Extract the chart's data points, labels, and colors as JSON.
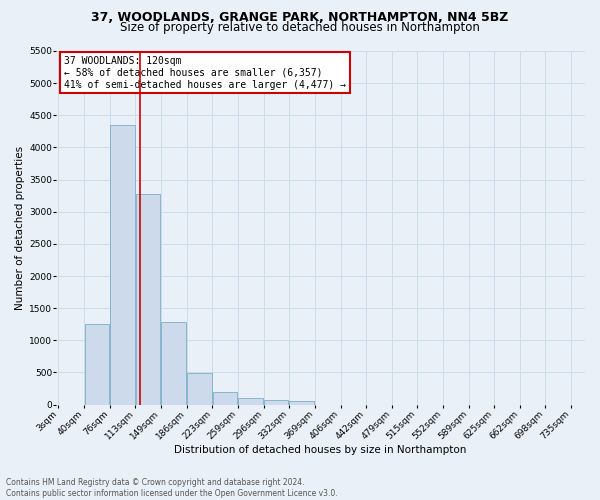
{
  "title": "37, WOODLANDS, GRANGE PARK, NORTHAMPTON, NN4 5BZ",
  "subtitle": "Size of property relative to detached houses in Northampton",
  "xlabel": "Distribution of detached houses by size in Northampton",
  "ylabel": "Number of detached properties",
  "bin_labels": [
    "3sqm",
    "40sqm",
    "76sqm",
    "113sqm",
    "149sqm",
    "186sqm",
    "223sqm",
    "259sqm",
    "296sqm",
    "332sqm",
    "369sqm",
    "406sqm",
    "442sqm",
    "479sqm",
    "515sqm",
    "552sqm",
    "589sqm",
    "625sqm",
    "662sqm",
    "698sqm",
    "735sqm"
  ],
  "bar_heights": [
    0,
    1250,
    4350,
    3280,
    1280,
    490,
    200,
    100,
    70,
    50,
    0,
    0,
    0,
    0,
    0,
    0,
    0,
    0,
    0,
    0
  ],
  "bar_color": "#ccdaeb",
  "bar_edge_color": "#7aafc9",
  "grid_color": "#c8d8e8",
  "background_color": "#eaf0f8",
  "vline_x": 120,
  "vline_color": "#cc0000",
  "annotation_text": "37 WOODLANDS: 120sqm\n← 58% of detached houses are smaller (6,357)\n41% of semi-detached houses are larger (4,477) →",
  "annotation_box_color": "#ffffff",
  "annotation_border_color": "#cc0000",
  "ylim": [
    0,
    5500
  ],
  "footer": "Contains HM Land Registry data © Crown copyright and database right 2024.\nContains public sector information licensed under the Open Government Licence v3.0.",
  "title_fontsize": 9,
  "subtitle_fontsize": 8.5,
  "tick_fontsize": 6.5,
  "ylabel_fontsize": 7.5,
  "xlabel_fontsize": 7.5,
  "annotation_fontsize": 7,
  "footer_fontsize": 5.5
}
